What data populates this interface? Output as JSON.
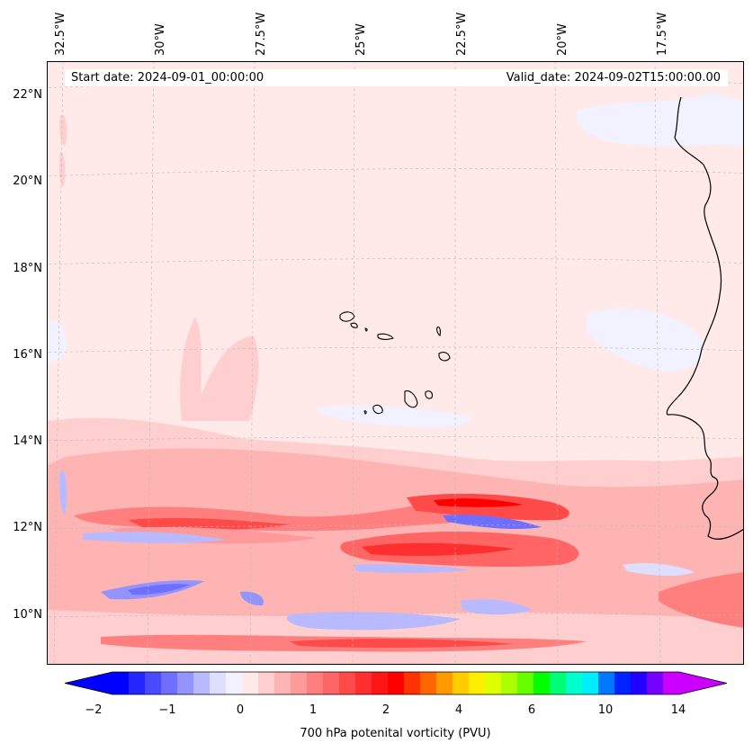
{
  "map": {
    "lon_labels": [
      "32.5°W",
      "30°W",
      "27.5°W",
      "25°W",
      "22.5°W",
      "20°W",
      "17.5°W"
    ],
    "lat_labels": [
      "22°N",
      "20°N",
      "18°N",
      "16°N",
      "14°N",
      "12°N",
      "10°N"
    ],
    "start_date": "Start date: 2024-09-01_00:00:00",
    "valid_date": "Valid_date: 2024-09-02T15:00:00.00",
    "region": "Eastern tropical Atlantic, Cape Verde islands, West African coast (Mauritania/Senegal)"
  },
  "colorbar": {
    "title": "700 hPa potenital vorticity (PVU)",
    "tick_labels": [
      "−2",
      "−1",
      "0",
      "1",
      "2",
      "4",
      "6",
      "10",
      "14"
    ],
    "colors": [
      "#0000ff",
      "#2525ff",
      "#4a4aff",
      "#6f6fff",
      "#9494ff",
      "#b9b9ff",
      "#dedeff",
      "#f1f1ff",
      "#ffe9e9",
      "#ffcfcf",
      "#ffb4b4",
      "#ff9a9a",
      "#ff7f7f",
      "#ff6565",
      "#ff4a4a",
      "#ff2f2f",
      "#ff1515",
      "#ff0000",
      "#ff3300",
      "#ff6600",
      "#ff9900",
      "#ffcc00",
      "#ffee00",
      "#ddff00",
      "#aaff00",
      "#66ff00",
      "#00ff00",
      "#00ff77",
      "#00ffcc",
      "#00eeff",
      "#0077ff",
      "#0022ff",
      "#2200ff",
      "#7700ff",
      "#cc00ff"
    ],
    "extend_min_color": "#0000ff",
    "extend_max_color": "#cc00ff"
  }
}
